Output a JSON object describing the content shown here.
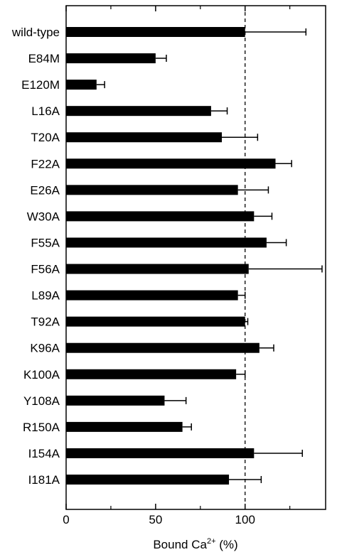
{
  "chart_data": {
    "type": "bar",
    "orientation": "horizontal",
    "xlabel": {
      "text": "Bound Ca",
      "sup": "2+",
      "suffix": " (%)"
    },
    "categories": [
      "wild-type",
      "E84M",
      "E120M",
      "L16A",
      "T20A",
      "F22A",
      "E26A",
      "W30A",
      "F55A",
      "F56A",
      "L89A",
      "T92A",
      "K96A",
      "K100A",
      "Y108A",
      "R150A",
      "I154A",
      "I181A"
    ],
    "values": [
      100,
      50,
      17,
      81,
      87,
      117,
      96,
      105,
      112,
      102,
      96,
      100,
      108,
      95,
      55,
      65,
      105,
      91
    ],
    "errors": [
      34,
      6,
      4.5,
      9,
      20,
      9,
      17,
      10,
      11,
      41,
      4,
      1.5,
      8,
      5,
      12,
      5,
      27,
      18
    ],
    "color": "#000000",
    "xlim": [
      0,
      145
    ],
    "xticks": [
      0,
      50,
      100
    ],
    "minor_xticks": [
      25,
      75,
      125
    ],
    "reference_line": 100
  }
}
